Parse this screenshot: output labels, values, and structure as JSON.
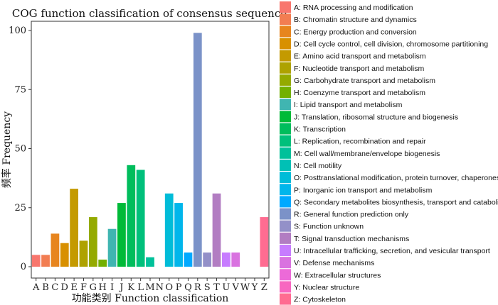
{
  "chart_data": {
    "type": "bar",
    "title": "COG function classification of consensus sequence",
    "xlabel": "功能类别  Function classification",
    "ylabel": "频率  Frequency",
    "ylim": [
      0,
      107
    ],
    "yticks": [
      0,
      25,
      50,
      75,
      100
    ],
    "grid": false,
    "legend_position": "right",
    "categories": [
      "A",
      "B",
      "C",
      "D",
      "E",
      "F",
      "G",
      "H",
      "I",
      "J",
      "K",
      "L",
      "M",
      "N",
      "O",
      "P",
      "Q",
      "R",
      "S",
      "T",
      "U",
      "V",
      "W",
      "Y",
      "Z"
    ],
    "values": [
      5,
      5,
      14,
      10,
      33,
      11,
      21,
      3,
      16,
      27,
      43,
      41,
      4,
      0,
      31,
      27,
      6,
      99,
      6,
      31,
      6,
      6,
      0,
      0,
      21
    ],
    "colors": [
      "#F8766D",
      "#F27D52",
      "#E7851E",
      "#D89000",
      "#C49A00",
      "#AEA200",
      "#94AA00",
      "#72B000",
      "#40B5B1",
      "#00BA38",
      "#00BD5C",
      "#00C07B",
      "#00C19A",
      "#00C0B5",
      "#00BCD8",
      "#00B6EB",
      "#00A9FF",
      "#7B92C8",
      "#9390C8",
      "#B27DC2",
      "#C77CFF",
      "#D972E0",
      "#EC6AD8",
      "#F767C0",
      "#FF6C91"
    ],
    "legend": [
      "A: RNA processing and modification",
      "B: Chromatin structure and dynamics",
      "C: Energy production and conversion",
      "D: Cell cycle control, cell division, chromosome partitioning",
      "E: Amino acid transport and metabolism",
      "F: Nucleotide transport and metabolism",
      "G: Carbohydrate transport and metabolism",
      "H: Coenzyme transport and metabolism",
      "I: Lipid transport and metabolism",
      "J: Translation, ribosomal structure and biogenesis",
      "K: Transcription",
      "L: Replication, recombination and repair",
      "M: Cell wall/membrane/envelope biogenesis",
      "N: Cell motility",
      "O: Posttranslational modification, protein turnover, chaperones",
      "P: Inorganic ion transport and metabolism",
      "Q: Secondary metabolites biosynthesis, transport and catabolism",
      "R: General function prediction only",
      "S: Function unknown",
      "T: Signal transduction mechanisms",
      "U: Intracellular trafficking, secretion, and vesicular transport",
      "V: Defense mechanisms",
      "W: Extracellular structures",
      "Y: Nuclear structure",
      "Z: Cytoskeleton"
    ]
  }
}
